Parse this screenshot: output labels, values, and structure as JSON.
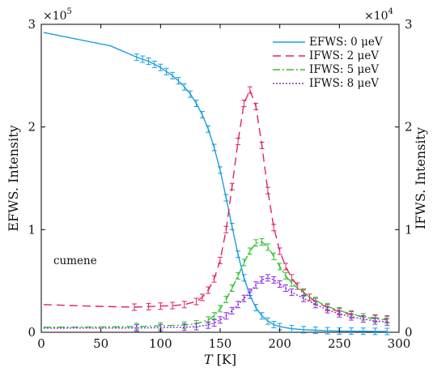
{
  "chart_data": {
    "type": "line",
    "annotation": "cumene",
    "xlabel": {
      "var": "T",
      "unit": " [K]"
    },
    "ylabel_left": "EFWS. Intensity",
    "ylabel_right": "IFWS. Intensity",
    "xlim": [
      0,
      300
    ],
    "ylim_left": [
      0,
      300000
    ],
    "ylim_right": [
      0,
      30000
    ],
    "x_ticks": [
      "0",
      "50",
      "100",
      "150",
      "200",
      "250",
      "300"
    ],
    "y_ticks_left": [
      "0",
      "1",
      "2",
      "3"
    ],
    "y_ticks_right": [
      "0",
      "1",
      "2",
      "3"
    ],
    "multiplier_left": {
      "base": "×10",
      "exp": "5"
    },
    "multiplier_right": {
      "base": "×10",
      "exp": "4"
    },
    "grid": false,
    "legend_position": "top-right",
    "series": [
      {
        "name": "EFWS: 0 μeV",
        "axis": "left",
        "color": "#1a9ee0",
        "dash": "solid",
        "x": [
          2,
          58,
          80,
          85,
          90,
          95,
          100,
          105,
          110,
          115,
          120,
          125,
          130,
          135,
          140,
          145,
          150,
          155,
          160,
          165,
          170,
          175,
          180,
          185,
          190,
          195,
          200,
          210,
          220,
          230,
          240,
          250,
          260,
          270,
          280,
          290
        ],
        "y": [
          292000,
          279000,
          268000,
          266000,
          264000,
          261000,
          258000,
          254000,
          250000,
          245000,
          239000,
          232000,
          223000,
          212000,
          198000,
          180000,
          158000,
          131000,
          103000,
          76000,
          53000,
          36000,
          24000,
          16000,
          11000,
          7500,
          5500,
          3500,
          2500,
          2000,
          1500,
          1300,
          1100,
          1000,
          900,
          800
        ]
      },
      {
        "name": "IFWS: 2 μeV",
        "axis": "right",
        "color": "#e0245e",
        "dash": "10 6",
        "x": [
          2,
          40,
          78,
          90,
          100,
          110,
          120,
          130,
          135,
          140,
          145,
          150,
          155,
          160,
          165,
          170,
          175,
          180,
          185,
          190,
          195,
          200,
          205,
          210,
          215,
          220,
          225,
          230,
          240,
          250,
          260,
          270,
          280,
          290
        ],
        "y": [
          2700,
          2550,
          2450,
          2500,
          2550,
          2600,
          2700,
          3000,
          3400,
          4100,
          5200,
          7000,
          10000,
          14200,
          18600,
          22300,
          23600,
          22000,
          18200,
          13800,
          10200,
          7900,
          6400,
          5300,
          4500,
          3900,
          3400,
          3000,
          2400,
          2000,
          1700,
          1500,
          1400,
          1300
        ]
      },
      {
        "name": "IFWS: 5 μeV",
        "axis": "right",
        "color": "#30c230",
        "dash": "9 3 2 3",
        "x": [
          2,
          50,
          80,
          100,
          120,
          130,
          140,
          145,
          150,
          155,
          160,
          165,
          170,
          175,
          180,
          185,
          190,
          195,
          200,
          205,
          210,
          220,
          230,
          240,
          250,
          260,
          270,
          280,
          290
        ],
        "y": [
          500,
          520,
          560,
          620,
          700,
          820,
          1200,
          1600,
          2300,
          3200,
          4300,
          5500,
          6800,
          7900,
          8700,
          8800,
          8300,
          7400,
          6400,
          5500,
          4800,
          3800,
          3100,
          2500,
          2100,
          1800,
          1500,
          1300,
          1200
        ]
      },
      {
        "name": "IFWS: 8 μeV",
        "axis": "right",
        "color": "#8a2be2",
        "dash": "2 2",
        "x": [
          2,
          50,
          80,
          100,
          120,
          130,
          140,
          145,
          150,
          155,
          160,
          165,
          170,
          175,
          180,
          185,
          190,
          195,
          200,
          205,
          210,
          220,
          230,
          240,
          250,
          260,
          270,
          280,
          290
        ],
        "y": [
          400,
          410,
          420,
          450,
          500,
          550,
          700,
          900,
          1200,
          1600,
          2100,
          2700,
          3300,
          3900,
          4600,
          5100,
          5300,
          5100,
          4700,
          4300,
          3900,
          3300,
          2700,
          2200,
          1800,
          1500,
          1300,
          1100,
          1000
        ]
      }
    ]
  }
}
